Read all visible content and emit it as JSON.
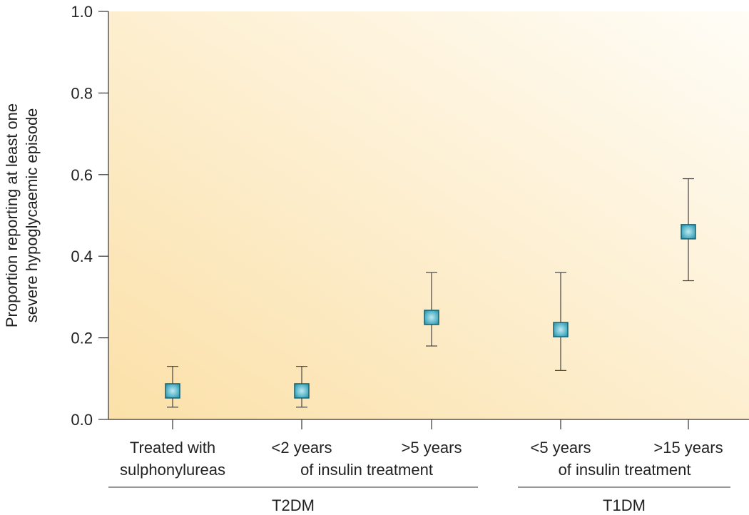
{
  "chart_data": {
    "type": "scatter",
    "ylabel": [
      "Proportion reporting at least one",
      "severe hypoglycaemic episode"
    ],
    "ylim": [
      0,
      1.0
    ],
    "yticks": [
      "0.0",
      "0.2",
      "0.4",
      "0.6",
      "0.8",
      "1.0"
    ],
    "categories": [
      "Treated with sulphonylureas",
      "<2 years",
      ">5 years",
      "<5 years",
      ">15 years"
    ],
    "category_lines": [
      [
        "Treated with",
        "sulphonylureas"
      ],
      [
        "<2 years"
      ],
      [
        ">5 years"
      ],
      [
        "<5 years"
      ],
      [
        ">15 years"
      ]
    ],
    "sublabels": [
      "of insulin treatment",
      "of insulin treatment"
    ],
    "groups": [
      "T2DM",
      "T1DM"
    ],
    "values": [
      0.07,
      0.07,
      0.25,
      0.22,
      0.46
    ],
    "lower": [
      0.03,
      0.03,
      0.18,
      0.12,
      0.34
    ],
    "upper": [
      0.13,
      0.13,
      0.36,
      0.36,
      0.59
    ],
    "colors": {
      "marker_fill": "#2a9db5",
      "marker_highlight": "#bfe9f2",
      "marker_edge": "#1b5f6e",
      "bg_warm": "#fbe0a8",
      "bg_light": "#fffdf7",
      "axis": "#333333"
    }
  }
}
